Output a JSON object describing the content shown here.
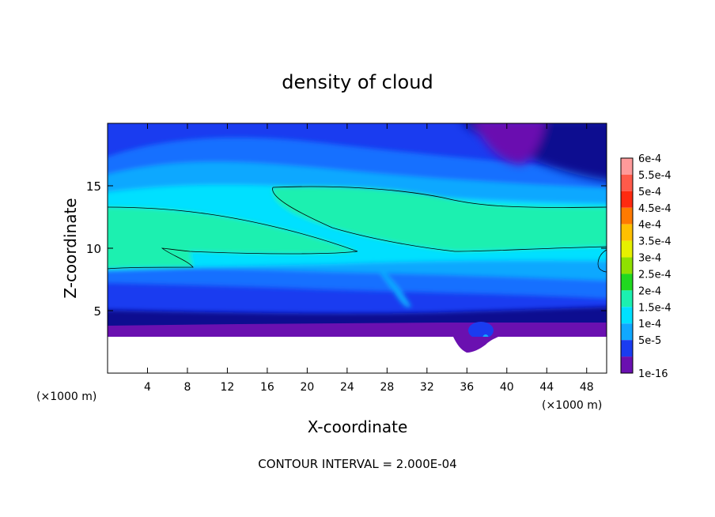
{
  "chart_data": {
    "type": "heatmap",
    "title": "density of cloud",
    "xlabel": "X-coordinate",
    "ylabel": "Z-coordinate",
    "x_unit_left": "(×1000 m)",
    "x_unit_right": "(×1000 m)",
    "xlim": [
      0,
      50
    ],
    "ylim": [
      0,
      20
    ],
    "x_ticks": [
      "4",
      "8",
      "12",
      "16",
      "20",
      "24",
      "28",
      "32",
      "36",
      "40",
      "44",
      "48"
    ],
    "y_ticks": [
      "5",
      "10",
      "15"
    ],
    "footer": "CONTOUR INTERVAL = 2.000E-04",
    "legend_position": "right",
    "legend": [
      {
        "label": "6e-4",
        "color": "#ff9a9a"
      },
      {
        "label": "5.5e-4",
        "color": "#ff5a4a"
      },
      {
        "label": "5e-4",
        "color": "#ff2a10"
      },
      {
        "label": "4.5e-4",
        "color": "#ff7a00"
      },
      {
        "label": "4e-4",
        "color": "#ffc000"
      },
      {
        "label": "3.5e-4",
        "color": "#e6f000"
      },
      {
        "label": "3e-4",
        "color": "#8fe000"
      },
      {
        "label": "2.5e-4",
        "color": "#20d820"
      },
      {
        "label": "2e-4",
        "color": "#1cf0b0"
      },
      {
        "label": "1.5e-4",
        "color": "#00e0ff"
      },
      {
        "label": "1e-4",
        "color": "#10a8ff"
      },
      {
        "label": "5e-5",
        "color": "#1a3cf0"
      },
      {
        "label": "1e-16",
        "color": "#6a10b0"
      }
    ],
    "field_colors": {
      "violet": "#6a10b0",
      "navy": "#0a0a90",
      "blue": "#1a3cf0",
      "mid_blue": "#1470ff",
      "light_blue": "#10a8ff",
      "cyan": "#00e0ff",
      "aqua": "#1cf0b0"
    }
  }
}
